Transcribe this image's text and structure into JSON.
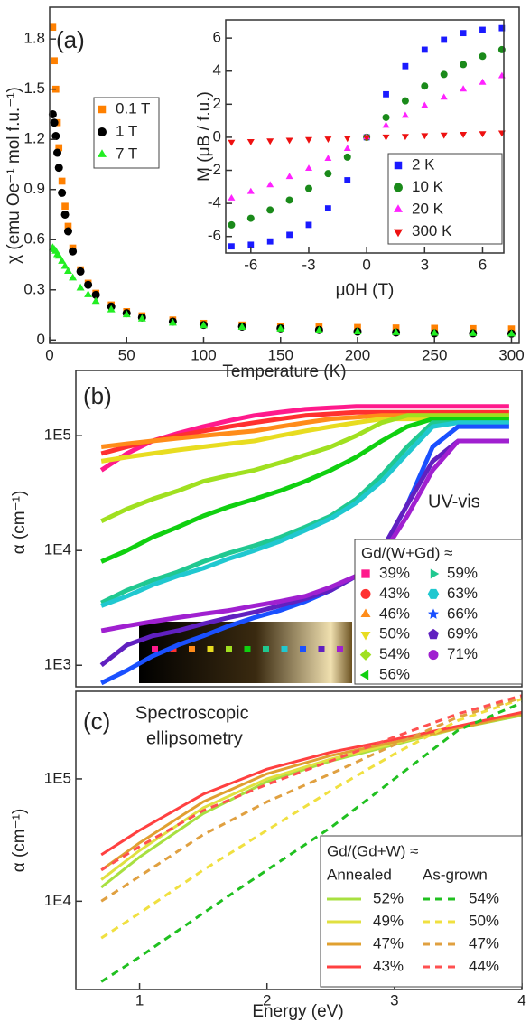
{
  "chart_data": [
    {
      "type": "scatter",
      "annotations": [
        "(a)"
      ],
      "x_label": "Temperature (K)",
      "y_label": "χ (emu Oe⁻¹ mol f.u.⁻¹)",
      "xlim": [
        0,
        305
      ],
      "xticks": [
        0,
        50,
        100,
        150,
        200,
        250,
        300
      ],
      "ylim": [
        -0.02,
        1.99
      ],
      "yticks": [
        0,
        0.3,
        0.6,
        0.9,
        1.2,
        1.5,
        1.8
      ],
      "x": [
        2,
        3,
        4,
        5,
        6,
        8,
        10,
        12,
        15,
        20,
        25,
        30,
        40,
        50,
        60,
        80,
        100,
        125,
        150,
        175,
        200,
        225,
        250,
        275,
        300
      ],
      "series": [
        {
          "name": "0.1 T",
          "color": "#ff8000",
          "marker": "square",
          "values": [
            1.87,
            1.67,
            1.5,
            1.3,
            1.15,
            0.95,
            0.8,
            0.68,
            0.55,
            0.42,
            0.34,
            0.28,
            0.21,
            0.17,
            0.145,
            0.12,
            0.1,
            0.09,
            0.08,
            0.078,
            0.075,
            0.072,
            0.07,
            0.068,
            0.066
          ]
        },
        {
          "name": "1 T",
          "color": "#000000",
          "marker": "circle",
          "values": [
            1.35,
            1.3,
            1.22,
            1.12,
            1.03,
            0.88,
            0.75,
            0.65,
            0.53,
            0.41,
            0.33,
            0.27,
            0.2,
            0.16,
            0.135,
            0.11,
            0.09,
            0.08,
            0.07,
            0.06,
            0.05,
            0.045,
            0.04,
            0.04,
            0.038
          ]
        },
        {
          "name": "7 T",
          "color": "#22ee22",
          "marker": "triangle-up",
          "values": [
            0.55,
            0.54,
            0.53,
            0.51,
            0.5,
            0.47,
            0.44,
            0.41,
            0.37,
            0.31,
            0.27,
            0.23,
            0.18,
            0.15,
            0.125,
            0.1,
            0.085,
            0.075,
            0.065,
            0.055,
            0.048,
            0.043,
            0.04,
            0.038,
            0.035
          ]
        }
      ]
    },
    {
      "type": "scatter",
      "x_label": "μ0H (T)",
      "y_label": "M (μB / f.u.)",
      "xlim": [
        -7.3,
        7.1
      ],
      "xticks": [
        -6,
        -3,
        0,
        3,
        6
      ],
      "ylim": [
        -7.0,
        7.1
      ],
      "yticks": [
        -6,
        -4,
        -2,
        0,
        2,
        4,
        6
      ],
      "x": [
        -7,
        -6,
        -5,
        -4,
        -3,
        -2,
        -1,
        0,
        1,
        2,
        3,
        4,
        5,
        6,
        7
      ],
      "series": [
        {
          "name": "2 K",
          "color": "#1a1aff",
          "marker": "square",
          "values": [
            -6.6,
            -6.5,
            -6.3,
            -5.9,
            -5.3,
            -4.3,
            -2.6,
            0,
            2.6,
            4.3,
            5.3,
            5.9,
            6.3,
            6.5,
            6.6
          ]
        },
        {
          "name": "10 K",
          "color": "#1a8a1a",
          "marker": "circle",
          "values": [
            -5.3,
            -4.9,
            -4.4,
            -3.8,
            -3.1,
            -2.2,
            -1.2,
            0,
            1.2,
            2.2,
            3.1,
            3.8,
            4.4,
            4.9,
            5.3
          ]
        },
        {
          "name": "20 K",
          "color": "#ff22ff",
          "marker": "triangle-up",
          "values": [
            -3.7,
            -3.3,
            -2.9,
            -2.4,
            -1.9,
            -1.3,
            -0.7,
            0,
            0.7,
            1.3,
            1.9,
            2.4,
            2.9,
            3.3,
            3.7
          ]
        },
        {
          "name": "300 K",
          "color": "#ee1111",
          "marker": "triangle-down",
          "values": [
            -0.28,
            -0.24,
            -0.2,
            -0.16,
            -0.12,
            -0.08,
            -0.04,
            0,
            0.04,
            0.08,
            0.12,
            0.16,
            0.2,
            0.24,
            0.28
          ]
        }
      ]
    },
    {
      "type": "line",
      "annotations": [
        "(b)",
        "UV-vis"
      ],
      "y_label": "α (cm⁻¹)",
      "log_y": true,
      "xlim": [
        0.5,
        4
      ],
      "ylim": [
        650,
        370000
      ],
      "yticks": [
        {
          "value": 1000,
          "label": "1E3"
        },
        {
          "value": 10000,
          "label": "1E4"
        },
        {
          "value": 100000,
          "label": "1E5"
        }
      ],
      "legend_title": "Gd/(W+Gd) ≈",
      "x": [
        0.7,
        0.9,
        1.1,
        1.3,
        1.5,
        1.7,
        1.9,
        2.1,
        2.3,
        2.5,
        2.7,
        2.9,
        3.1,
        3.3,
        3.5,
        3.7,
        3.9
      ],
      "series": [
        {
          "name": "39%",
          "color": "#ff1a8c",
          "marker": "square",
          "values": [
            50000,
            70000,
            90000,
            105000,
            120000,
            135000,
            150000,
            160000,
            170000,
            175000,
            180000,
            180000,
            180000,
            180000,
            180000,
            180000,
            180000
          ]
        },
        {
          "name": "43%",
          "color": "#ff3030",
          "marker": "circle",
          "values": [
            70000,
            80000,
            90000,
            100000,
            110000,
            120000,
            130000,
            140000,
            150000,
            155000,
            160000,
            160000,
            160000,
            160000,
            160000,
            160000,
            160000
          ]
        },
        {
          "name": "46%",
          "color": "#ff8c1a",
          "marker": "triangle-up",
          "values": [
            80000,
            85000,
            90000,
            95000,
            100000,
            105000,
            110000,
            120000,
            130000,
            140000,
            145000,
            150000,
            150000,
            150000,
            150000,
            150000,
            150000
          ]
        },
        {
          "name": "50%",
          "color": "#e8dc20",
          "marker": "triangle-down",
          "values": [
            60000,
            65000,
            70000,
            75000,
            80000,
            85000,
            90000,
            100000,
            110000,
            120000,
            130000,
            140000,
            140000,
            140000,
            140000,
            140000,
            140000
          ]
        },
        {
          "name": "54%",
          "color": "#a0e020",
          "marker": "diamond",
          "values": [
            18000,
            23000,
            28000,
            33000,
            40000,
            45000,
            50000,
            58000,
            68000,
            80000,
            100000,
            130000,
            150000,
            150000,
            150000,
            150000,
            150000
          ]
        },
        {
          "name": "56%",
          "color": "#10d010",
          "marker": "triangle-left",
          "values": [
            8000,
            10000,
            13000,
            16000,
            20000,
            24000,
            28000,
            33000,
            40000,
            50000,
            65000,
            90000,
            120000,
            140000,
            140000,
            140000,
            140000
          ]
        },
        {
          "name": "59%",
          "color": "#20c890",
          "marker": "triangle-right",
          "values": [
            3500,
            4500,
            5500,
            6500,
            8000,
            9500,
            11000,
            13000,
            16000,
            20000,
            28000,
            45000,
            80000,
            130000,
            130000,
            130000,
            130000
          ]
        },
        {
          "name": "63%",
          "color": "#20c8d0",
          "marker": "hexagon",
          "values": [
            3300,
            4000,
            5000,
            6000,
            7000,
            8500,
            10000,
            12000,
            15000,
            19000,
            26000,
            40000,
            70000,
            120000,
            130000,
            130000,
            130000
          ]
        },
        {
          "name": "66%",
          "color": "#1a50ff",
          "marker": "star",
          "values": [
            700,
            900,
            1200,
            1500,
            1800,
            2200,
            2600,
            3000,
            3600,
            4500,
            6000,
            10000,
            25000,
            80000,
            120000,
            120000,
            120000
          ]
        },
        {
          "name": "69%",
          "color": "#6020c0",
          "marker": "pentagon",
          "values": [
            1000,
            1500,
            1800,
            2000,
            2300,
            2600,
            2900,
            3300,
            3800,
            4500,
            6000,
            10000,
            25000,
            60000,
            90000,
            90000,
            90000
          ]
        },
        {
          "name": "71%",
          "color": "#a020d0",
          "marker": "circle",
          "values": [
            2000,
            2200,
            2400,
            2600,
            2800,
            3000,
            3300,
            3600,
            4000,
            4800,
            6000,
            9000,
            20000,
            50000,
            90000,
            90000,
            90000
          ]
        }
      ]
    },
    {
      "type": "line",
      "annotations": [
        "(c)",
        "Spectroscopic",
        "ellipsometry"
      ],
      "x_label": "Energy (eV)",
      "y_label": "α (cm⁻¹)",
      "log_y": true,
      "xlim": [
        0.5,
        4
      ],
      "xticks": [
        1,
        2,
        3,
        4
      ],
      "ylim": [
        1900,
        520000
      ],
      "yticks": [
        {
          "value": 10000,
          "label": "1E4"
        },
        {
          "value": 100000,
          "label": "1E5"
        }
      ],
      "legend_title": "Gd/(Gd+W) ≈",
      "legend_columns": [
        "Annealed",
        "As-grown"
      ],
      "x": [
        0.7,
        1,
        1.5,
        2,
        2.5,
        3,
        3.5,
        4
      ],
      "series": [
        {
          "name": "52%",
          "color": "#a8e040",
          "dash": false,
          "values": [
            13000,
            23000,
            52000,
            95000,
            140000,
            190000,
            260000,
            330000
          ]
        },
        {
          "name": "49%",
          "color": "#e0e040",
          "dash": false,
          "values": [
            15000,
            26000,
            58000,
            100000,
            145000,
            195000,
            260000,
            340000
          ]
        },
        {
          "name": "47%",
          "color": "#e0a030",
          "dash": false,
          "values": [
            18000,
            30000,
            65000,
            110000,
            155000,
            200000,
            260000,
            340000
          ]
        },
        {
          "name": "43%",
          "color": "#ff4040",
          "dash": false,
          "values": [
            24000,
            38000,
            75000,
            120000,
            165000,
            210000,
            270000,
            350000
          ]
        },
        {
          "name": "54%",
          "color": "#20c020",
          "dash": true,
          "values": [
            2200,
            3500,
            8000,
            18000,
            40000,
            100000,
            250000,
            420000
          ]
        },
        {
          "name": "50%",
          "color": "#f0e040",
          "dash": true,
          "values": [
            5000,
            8000,
            18000,
            38000,
            80000,
            160000,
            300000,
            450000
          ]
        },
        {
          "name": "47%",
          "color": "#e0a040",
          "dash": true,
          "values": [
            10000,
            16000,
            35000,
            65000,
            110000,
            190000,
            320000,
            460000
          ]
        },
        {
          "name": "44%",
          "color": "#ff5050",
          "dash": true,
          "values": [
            18000,
            28000,
            55000,
            90000,
            140000,
            220000,
            340000,
            480000
          ]
        }
      ]
    }
  ]
}
